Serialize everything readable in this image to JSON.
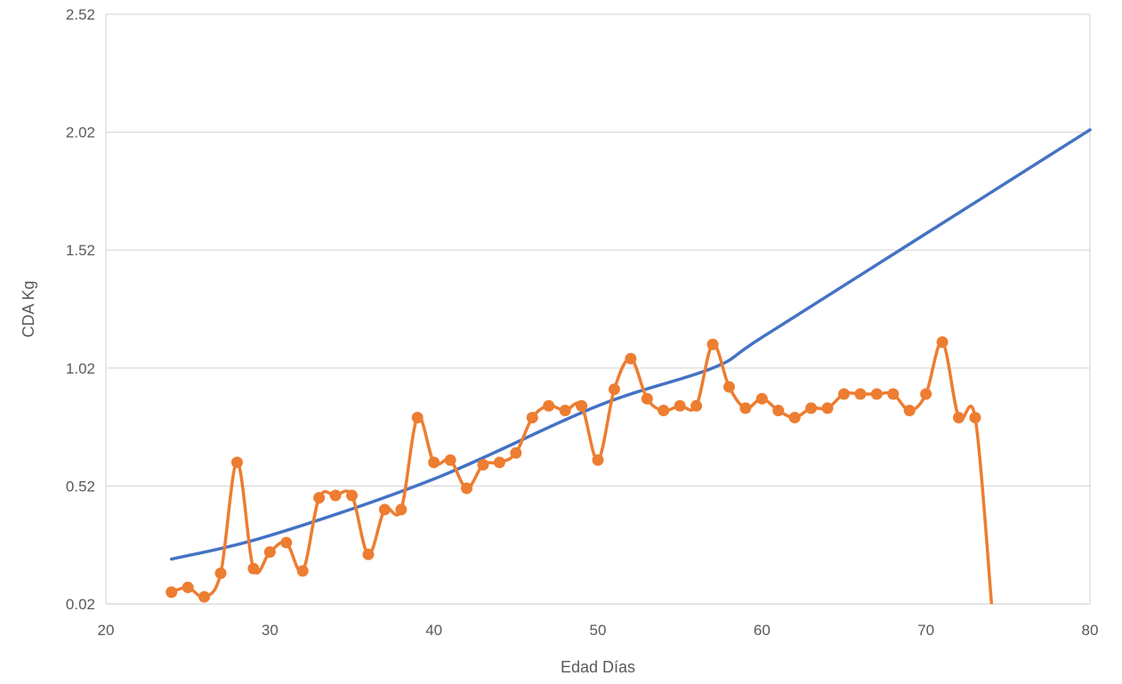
{
  "chart_data": {
    "type": "line",
    "title": "",
    "xlabel": "Edad Días",
    "ylabel": "CDA Kg",
    "xlim": [
      20,
      80
    ],
    "ylim": [
      0.02,
      2.52
    ],
    "grid": true,
    "legend": "none",
    "x_ticks": [
      "20",
      "30",
      "40",
      "50",
      "60",
      "70",
      "80"
    ],
    "y_ticks": [
      "0.02",
      "0.52",
      "1.02",
      "1.52",
      "2.02",
      "2.52"
    ],
    "colors": {
      "observed": "#ED7D31",
      "trend": "#4472C4",
      "grid": "#D9D9D9",
      "text": "#595959"
    },
    "series": [
      {
        "kind": "observed",
        "markers": true,
        "x": [
          24,
          25,
          26,
          27,
          28,
          29,
          30,
          31,
          32,
          33,
          34,
          35,
          36,
          37,
          38,
          39,
          40,
          41,
          42,
          43,
          44,
          45,
          46,
          47,
          48,
          49,
          50,
          51,
          52,
          53,
          54,
          55,
          56,
          57,
          58,
          59,
          60,
          61,
          62,
          63,
          64,
          65,
          66,
          67,
          68,
          69,
          70,
          71,
          72,
          73
        ],
        "y": [
          0.07,
          0.09,
          0.05,
          0.15,
          0.62,
          0.17,
          0.24,
          0.28,
          0.16,
          0.47,
          0.48,
          0.48,
          0.23,
          0.42,
          0.42,
          0.81,
          0.62,
          0.63,
          0.51,
          0.61,
          0.62,
          0.66,
          0.81,
          0.86,
          0.84,
          0.86,
          0.63,
          0.93,
          1.06,
          0.89,
          0.84,
          0.86,
          0.86,
          1.12,
          0.94,
          0.85,
          0.89,
          0.84,
          0.81,
          0.85,
          0.85,
          0.91,
          0.91,
          0.91,
          0.91,
          0.84,
          0.91,
          1.13,
          0.81,
          0.81
        ]
      },
      {
        "kind": "trend",
        "markers": false,
        "x": [
          24,
          30,
          40,
          50,
          57,
          60,
          70,
          80
        ],
        "y": [
          0.21,
          0.31,
          0.55,
          0.86,
          1.02,
          1.15,
          1.59,
          2.03
        ]
      }
    ]
  }
}
